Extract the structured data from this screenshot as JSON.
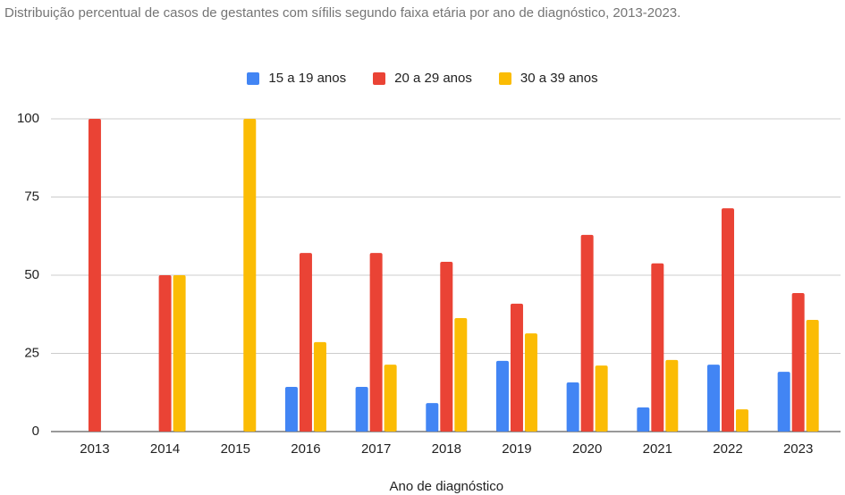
{
  "chart_data": {
    "type": "bar",
    "title": "Distribuição percentual de casos de gestantes com sífilis segundo faixa etária por ano de diagnóstico, 2013-2023.",
    "x_label": "Ano de diagnóstico",
    "categories": [
      "2013",
      "2014",
      "2015",
      "2016",
      "2017",
      "2018",
      "2019",
      "2020",
      "2021",
      "2022",
      "2023"
    ],
    "series": [
      {
        "name": "15 a 19 anos",
        "color": "#4285f4",
        "values": [
          0,
          0,
          0,
          14.3,
          14.3,
          9.1,
          22.6,
          15.7,
          7.7,
          21.4,
          19.1
        ]
      },
      {
        "name": "20 a 29 anos",
        "color": "#ea4335",
        "values": [
          100,
          50,
          0,
          57.1,
          57.1,
          54.3,
          40.9,
          62.9,
          53.8,
          71.4,
          44.3
        ]
      },
      {
        "name": "30 a 39 anos",
        "color": "#fbbc04",
        "values": [
          0,
          50,
          100,
          28.6,
          21.4,
          36.3,
          31.4,
          21.1,
          22.9,
          7.1,
          35.7
        ]
      }
    ],
    "ylim": [
      0,
      100
    ],
    "yticks": [
      0,
      25,
      50,
      75,
      100
    ],
    "grid": true,
    "legend": "top"
  }
}
